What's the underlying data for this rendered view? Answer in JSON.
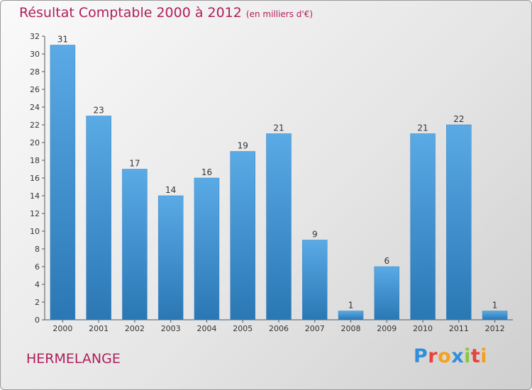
{
  "header": {
    "title": "Résultat Comptable 2000 à 2012",
    "unit": "(en milliers d'€)"
  },
  "footer": {
    "place": "HERMELANGE",
    "logo_letters": [
      {
        "ch": "P",
        "color": "#2f8fd8"
      },
      {
        "ch": "r",
        "color": "#e8423a"
      },
      {
        "ch": "o",
        "color": "#f4a11d"
      },
      {
        "ch": "x",
        "color": "#2f8fd8"
      },
      {
        "ch": "i",
        "color": "#8cc63f"
      },
      {
        "ch": "t",
        "color": "#e8423a"
      },
      {
        "ch": "i",
        "color": "#f4a11d"
      }
    ]
  },
  "colors": {
    "bar_top": "#5aaae6",
    "bar_bottom": "#2a77b4",
    "title": "#b01e5a"
  },
  "chart_data": {
    "type": "bar",
    "title": "Résultat Comptable 2000 à 2012",
    "xlabel": "",
    "ylabel": "",
    "categories": [
      "2000",
      "2001",
      "2002",
      "2003",
      "2004",
      "2005",
      "2006",
      "2007",
      "2008",
      "2009",
      "2010",
      "2011",
      "2012"
    ],
    "values": [
      31,
      23,
      17,
      14,
      16,
      19,
      21,
      9,
      1,
      6,
      21,
      22,
      1
    ],
    "ylim": [
      0,
      32
    ],
    "yticks": [
      0,
      2,
      4,
      6,
      8,
      10,
      12,
      14,
      16,
      18,
      20,
      22,
      24,
      26,
      28,
      30,
      32
    ],
    "grid": false,
    "legend": "none"
  }
}
